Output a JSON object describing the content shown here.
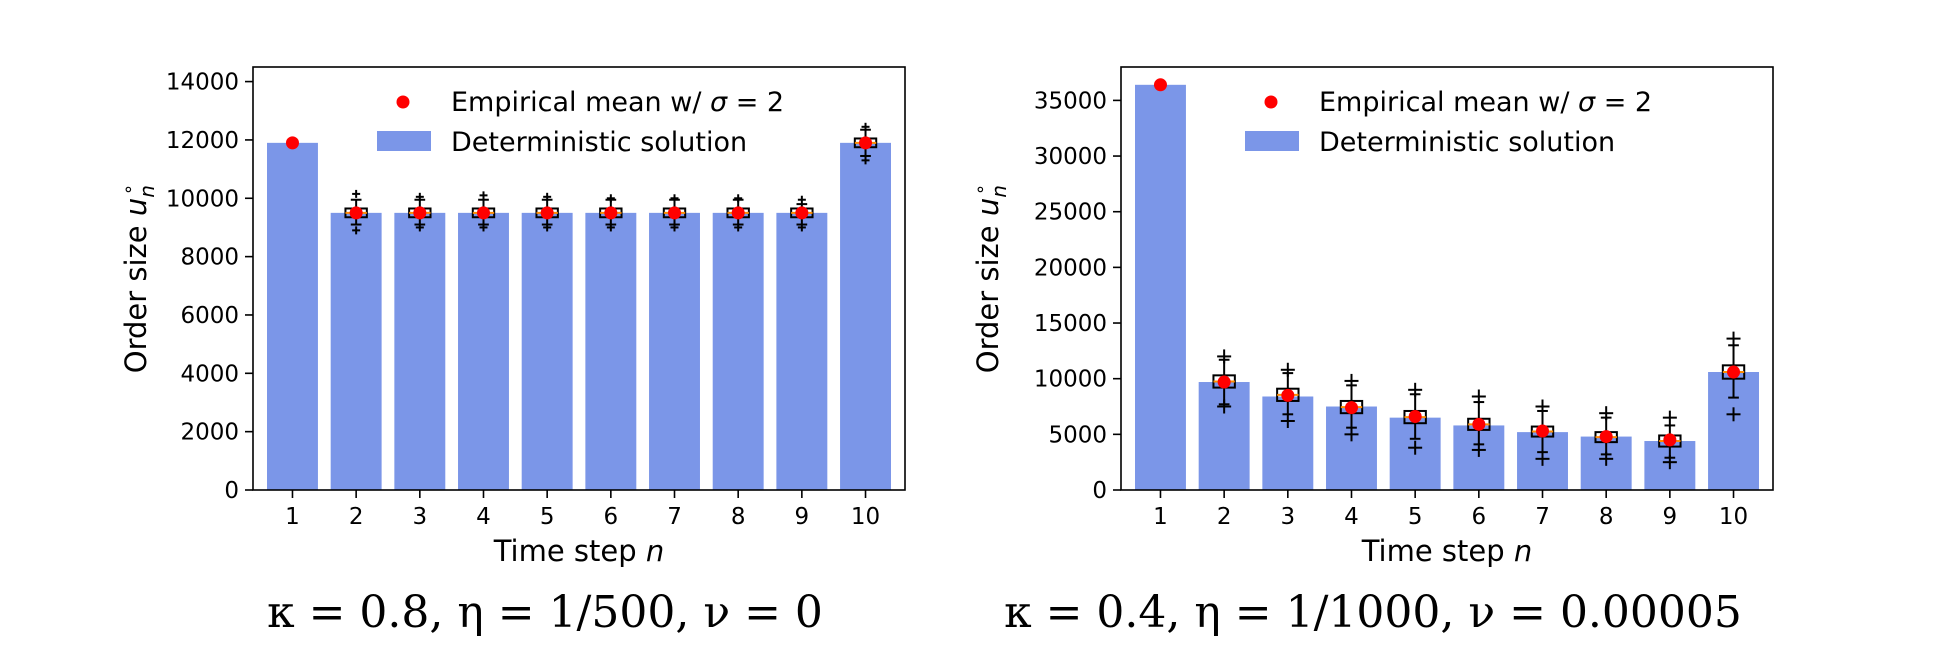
{
  "chart_data": [
    {
      "type": "bar",
      "categories": [
        "1",
        "2",
        "3",
        "4",
        "5",
        "6",
        "7",
        "8",
        "9",
        "10"
      ],
      "series": [
        {
          "name": "Deterministic solution",
          "values": [
            11900,
            9500,
            9500,
            9500,
            9500,
            9500,
            9500,
            9500,
            9500,
            11900
          ],
          "color": "#7b96e8"
        },
        {
          "name": "Empirical mean w/ σ = 2",
          "values": [
            11900,
            9500,
            9500,
            9500,
            9500,
            9500,
            9500,
            9500,
            9500,
            11900
          ],
          "color": "#ff0000"
        }
      ],
      "box": {
        "q1": [
          11900,
          9350,
          9350,
          9350,
          9350,
          9350,
          9350,
          9350,
          9350,
          11750
        ],
        "q3": [
          11900,
          9650,
          9650,
          9650,
          9650,
          9650,
          9650,
          9650,
          9650,
          12050
        ],
        "wlo": [
          11900,
          9100,
          9100,
          9100,
          9100,
          9100,
          9100,
          9100,
          9100,
          11450
        ],
        "whi": [
          11900,
          9950,
          9950,
          9950,
          9950,
          9950,
          9950,
          9950,
          9800,
          12350
        ],
        "flo": [
          11900,
          8900,
          9000,
          9000,
          9000,
          9000,
          9000,
          9000,
          9000,
          11300
        ],
        "fhi": [
          11900,
          10150,
          10050,
          10100,
          10050,
          10000,
          10000,
          10000,
          9950,
          12450
        ]
      },
      "yticks": [
        0,
        2000,
        4000,
        6000,
        8000,
        10000,
        12000,
        14000
      ],
      "ylim": [
        0,
        14500
      ],
      "xlabel_text": "Time step ",
      "xlabel_var": "n",
      "ylabel_text": "Order size ",
      "ylabel_var": "u",
      "ylabel_sub": "n",
      "ylabel_sup": "∘",
      "legend": {
        "mean_text": "Empirical mean w/ ",
        "mean_var": "σ",
        "mean_eq": " = 2",
        "bar_label": "Deterministic solution",
        "placement": "top-right"
      },
      "caption": "κ = 0.8, η = 1/500, ν = 0"
    },
    {
      "type": "bar",
      "categories": [
        "1",
        "2",
        "3",
        "4",
        "5",
        "6",
        "7",
        "8",
        "9",
        "10"
      ],
      "series": [
        {
          "name": "Deterministic solution",
          "values": [
            36400,
            9700,
            8400,
            7500,
            6500,
            5800,
            5200,
            4800,
            4400,
            10600
          ],
          "color": "#7b96e8"
        },
        {
          "name": "Empirical mean w/ σ = 2",
          "values": [
            36400,
            9700,
            8500,
            7400,
            6600,
            5900,
            5300,
            4800,
            4500,
            10600
          ],
          "color": "#ff0000"
        }
      ],
      "box": {
        "q1": [
          36400,
          9200,
          8000,
          6900,
          6000,
          5400,
          4800,
          4300,
          3900,
          10000
        ],
        "q3": [
          36400,
          10300,
          9100,
          8000,
          7100,
          6400,
          5700,
          5200,
          4900,
          11200
        ],
        "wlo": [
          36400,
          7700,
          6800,
          5600,
          4600,
          4100,
          3400,
          3200,
          2900,
          8300
        ],
        "whi": [
          36400,
          11700,
          10500,
          9400,
          8600,
          7900,
          7100,
          6500,
          5800,
          13000
        ],
        "flo": [
          36400,
          7500,
          6200,
          5000,
          3800,
          3600,
          2800,
          2800,
          2500,
          6800
        ],
        "fhi": [
          36400,
          12000,
          10800,
          9800,
          9000,
          8400,
          7500,
          6900,
          6500,
          13600
        ]
      },
      "yticks": [
        0,
        5000,
        10000,
        15000,
        20000,
        25000,
        30000,
        35000
      ],
      "ylim": [
        0,
        38000
      ],
      "xlabel_text": "Time step ",
      "xlabel_var": "n",
      "ylabel_text": "Order size ",
      "ylabel_var": "u",
      "ylabel_sub": "n",
      "ylabel_sup": "∘",
      "legend": {
        "mean_text": "Empirical mean w/ ",
        "mean_var": "σ",
        "mean_eq": " = 2",
        "bar_label": "Deterministic solution",
        "placement": "top-right"
      },
      "caption": "κ = 0.4, η = 1/1000, ν = 0.00005"
    }
  ]
}
